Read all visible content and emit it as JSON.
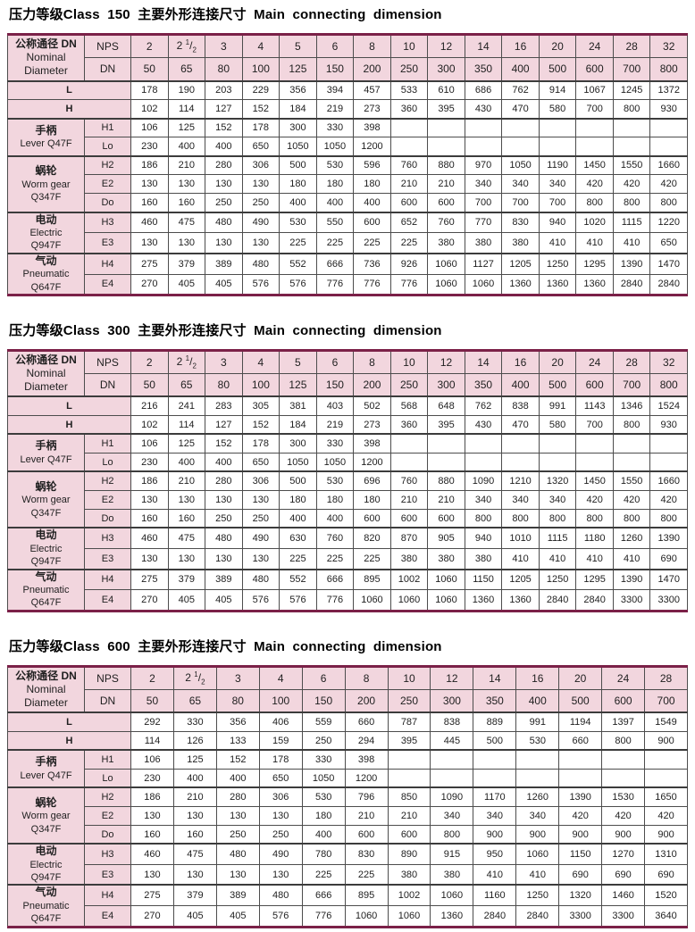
{
  "colors": {
    "header_pink": "#f2d6de",
    "rule_maroon": "#7b2148",
    "grid_line": "#4d4d4d",
    "text": "#1f1f1f"
  },
  "tables": [
    {
      "title": "压力等级Class 150 主要外形连接尺寸 Main connecting dimension",
      "corner_lines": [
        "公称通径 DN",
        "Nominal",
        "Diameter"
      ],
      "nps_label": "NPS",
      "dn_label": "DN",
      "nps": [
        "2",
        "2 1/2",
        "3",
        "4",
        "5",
        "6",
        "8",
        "10",
        "12",
        "14",
        "16",
        "20",
        "24",
        "28",
        "32"
      ],
      "dn": [
        "50",
        "65",
        "80",
        "100",
        "125",
        "150",
        "200",
        "250",
        "300",
        "350",
        "400",
        "500",
        "600",
        "700",
        "800"
      ],
      "rows": [
        {
          "label": "L",
          "span2": true,
          "values": [
            "178",
            "190",
            "203",
            "229",
            "356",
            "394",
            "457",
            "533",
            "610",
            "686",
            "762",
            "914",
            "1067",
            "1245",
            "1372"
          ]
        },
        {
          "label": "H",
          "span2": true,
          "values": [
            "102",
            "114",
            "127",
            "152",
            "184",
            "219",
            "273",
            "360",
            "395",
            "430",
            "470",
            "580",
            "700",
            "800",
            "930"
          ]
        },
        {
          "group": [
            "手柄",
            "Lever Q47F"
          ],
          "group_span": 2,
          "label": "H1",
          "values": [
            "106",
            "125",
            "152",
            "178",
            "300",
            "330",
            "398",
            "",
            "",
            "",
            "",
            "",
            "",
            "",
            ""
          ]
        },
        {
          "label": "Lo",
          "values": [
            "230",
            "400",
            "400",
            "650",
            "1050",
            "1050",
            "1200",
            "",
            "",
            "",
            "",
            "",
            "",
            "",
            ""
          ]
        },
        {
          "group": [
            "蜗轮",
            "Worm gear",
            "Q347F"
          ],
          "group_span": 3,
          "label": "H2",
          "values": [
            "186",
            "210",
            "280",
            "306",
            "500",
            "530",
            "596",
            "760",
            "880",
            "970",
            "1050",
            "1190",
            "1450",
            "1550",
            "1660"
          ]
        },
        {
          "label": "E2",
          "values": [
            "130",
            "130",
            "130",
            "130",
            "180",
            "180",
            "180",
            "210",
            "210",
            "340",
            "340",
            "340",
            "420",
            "420",
            "420"
          ]
        },
        {
          "label": "Do",
          "values": [
            "160",
            "160",
            "250",
            "250",
            "400",
            "400",
            "400",
            "600",
            "600",
            "700",
            "700",
            "700",
            "800",
            "800",
            "800"
          ]
        },
        {
          "group": [
            "电动",
            "Electric",
            "Q947F"
          ],
          "group_span": 2,
          "label": "H3",
          "values": [
            "460",
            "475",
            "480",
            "490",
            "530",
            "550",
            "600",
            "652",
            "760",
            "770",
            "830",
            "940",
            "1020",
            "1115",
            "1220"
          ]
        },
        {
          "label": "E3",
          "values": [
            "130",
            "130",
            "130",
            "130",
            "225",
            "225",
            "225",
            "225",
            "380",
            "380",
            "380",
            "410",
            "410",
            "410",
            "650"
          ]
        },
        {
          "group": [
            "气动",
            "Pneumatic",
            "Q647F"
          ],
          "group_span": 2,
          "label": "H4",
          "values": [
            "275",
            "379",
            "389",
            "480",
            "552",
            "666",
            "736",
            "926",
            "1060",
            "1127",
            "1205",
            "1250",
            "1295",
            "1390",
            "1470"
          ]
        },
        {
          "label": "E4",
          "values": [
            "270",
            "405",
            "405",
            "576",
            "576",
            "776",
            "776",
            "776",
            "1060",
            "1060",
            "1360",
            "1360",
            "1360",
            "2840",
            "2840"
          ]
        }
      ]
    },
    {
      "title": "压力等级Class 300 主要外形连接尺寸 Main connecting dimension",
      "corner_lines": [
        "公称通径 DN",
        "Nominal",
        "Diameter"
      ],
      "nps_label": "NPS",
      "dn_label": "DN",
      "nps": [
        "2",
        "2 1/2",
        "3",
        "4",
        "5",
        "6",
        "8",
        "10",
        "12",
        "14",
        "16",
        "20",
        "24",
        "28",
        "32"
      ],
      "dn": [
        "50",
        "65",
        "80",
        "100",
        "125",
        "150",
        "200",
        "250",
        "300",
        "350",
        "400",
        "500",
        "600",
        "700",
        "800"
      ],
      "rows": [
        {
          "label": "L",
          "span2": true,
          "values": [
            "216",
            "241",
            "283",
            "305",
            "381",
            "403",
            "502",
            "568",
            "648",
            "762",
            "838",
            "991",
            "1143",
            "1346",
            "1524"
          ]
        },
        {
          "label": "H",
          "span2": true,
          "values": [
            "102",
            "114",
            "127",
            "152",
            "184",
            "219",
            "273",
            "360",
            "395",
            "430",
            "470",
            "580",
            "700",
            "800",
            "930"
          ]
        },
        {
          "group": [
            "手柄",
            "Lever Q47F"
          ],
          "group_span": 2,
          "label": "H1",
          "values": [
            "106",
            "125",
            "152",
            "178",
            "300",
            "330",
            "398",
            "",
            "",
            "",
            "",
            "",
            "",
            "",
            ""
          ]
        },
        {
          "label": "Lo",
          "values": [
            "230",
            "400",
            "400",
            "650",
            "1050",
            "1050",
            "1200",
            "",
            "",
            "",
            "",
            "",
            "",
            "",
            ""
          ]
        },
        {
          "group": [
            "蜗轮",
            "Worm gear",
            "Q347F"
          ],
          "group_span": 3,
          "label": "H2",
          "values": [
            "186",
            "210",
            "280",
            "306",
            "500",
            "530",
            "696",
            "760",
            "880",
            "1090",
            "1210",
            "1320",
            "1450",
            "1550",
            "1660"
          ]
        },
        {
          "label": "E2",
          "values": [
            "130",
            "130",
            "130",
            "130",
            "180",
            "180",
            "180",
            "210",
            "210",
            "340",
            "340",
            "340",
            "420",
            "420",
            "420"
          ]
        },
        {
          "label": "Do",
          "values": [
            "160",
            "160",
            "250",
            "250",
            "400",
            "400",
            "600",
            "600",
            "600",
            "800",
            "800",
            "800",
            "800",
            "800",
            "800"
          ]
        },
        {
          "group": [
            "电动",
            "Electric",
            "Q947F"
          ],
          "group_span": 2,
          "label": "H3",
          "values": [
            "460",
            "475",
            "480",
            "490",
            "630",
            "760",
            "820",
            "870",
            "905",
            "940",
            "1010",
            "1115",
            "1180",
            "1260",
            "1390"
          ]
        },
        {
          "label": "E3",
          "values": [
            "130",
            "130",
            "130",
            "130",
            "225",
            "225",
            "225",
            "380",
            "380",
            "380",
            "410",
            "410",
            "410",
            "410",
            "690"
          ]
        },
        {
          "group": [
            "气动",
            "Pneumatic",
            "Q647F"
          ],
          "group_span": 2,
          "label": "H4",
          "values": [
            "275",
            "379",
            "389",
            "480",
            "552",
            "666",
            "895",
            "1002",
            "1060",
            "1150",
            "1205",
            "1250",
            "1295",
            "1390",
            "1470"
          ]
        },
        {
          "label": "E4",
          "values": [
            "270",
            "405",
            "405",
            "576",
            "576",
            "776",
            "1060",
            "1060",
            "1060",
            "1360",
            "1360",
            "2840",
            "2840",
            "3300",
            "3300"
          ]
        }
      ]
    },
    {
      "title": "压力等级Class 600 主要外形连接尺寸 Main connecting dimension",
      "corner_lines": [
        "公称通径 DN",
        "Nominal",
        "Diameter"
      ],
      "nps_label": "NPS",
      "dn_label": "DN",
      "nps": [
        "2",
        "2 1/2",
        "3",
        "4",
        "6",
        "8",
        "10",
        "12",
        "14",
        "16",
        "20",
        "24",
        "28"
      ],
      "dn": [
        "50",
        "65",
        "80",
        "100",
        "150",
        "200",
        "250",
        "300",
        "350",
        "400",
        "500",
        "600",
        "700"
      ],
      "rows": [
        {
          "label": "L",
          "span2": true,
          "values": [
            "292",
            "330",
            "356",
            "406",
            "559",
            "660",
            "787",
            "838",
            "889",
            "991",
            "1194",
            "1397",
            "1549"
          ]
        },
        {
          "label": "H",
          "span2": true,
          "values": [
            "114",
            "126",
            "133",
            "159",
            "250",
            "294",
            "395",
            "445",
            "500",
            "530",
            "660",
            "800",
            "900"
          ]
        },
        {
          "group": [
            "手柄",
            "Lever Q47F"
          ],
          "group_span": 2,
          "label": "H1",
          "values": [
            "106",
            "125",
            "152",
            "178",
            "330",
            "398",
            "",
            "",
            "",
            "",
            "",
            "",
            ""
          ]
        },
        {
          "label": "Lo",
          "values": [
            "230",
            "400",
            "400",
            "650",
            "1050",
            "1200",
            "",
            "",
            "",
            "",
            "",
            "",
            ""
          ]
        },
        {
          "group": [
            "蜗轮",
            "Worm gear",
            "Q347F"
          ],
          "group_span": 3,
          "label": "H2",
          "values": [
            "186",
            "210",
            "280",
            "306",
            "530",
            "796",
            "850",
            "1090",
            "1170",
            "1260",
            "1390",
            "1530",
            "1650"
          ]
        },
        {
          "label": "E2",
          "values": [
            "130",
            "130",
            "130",
            "130",
            "180",
            "210",
            "210",
            "340",
            "340",
            "340",
            "420",
            "420",
            "420"
          ]
        },
        {
          "label": "Do",
          "values": [
            "160",
            "160",
            "250",
            "250",
            "400",
            "600",
            "600",
            "800",
            "900",
            "900",
            "900",
            "900",
            "900"
          ]
        },
        {
          "group": [
            "电动",
            "Electric",
            "Q947F"
          ],
          "group_span": 2,
          "label": "H3",
          "values": [
            "460",
            "475",
            "480",
            "490",
            "780",
            "830",
            "890",
            "915",
            "950",
            "1060",
            "1150",
            "1270",
            "1310"
          ]
        },
        {
          "label": "E3",
          "values": [
            "130",
            "130",
            "130",
            "130",
            "225",
            "225",
            "380",
            "380",
            "410",
            "410",
            "690",
            "690",
            "690"
          ]
        },
        {
          "group": [
            "气动",
            "Pneumatic",
            "Q647F"
          ],
          "group_span": 2,
          "label": "H4",
          "values": [
            "275",
            "379",
            "389",
            "480",
            "666",
            "895",
            "1002",
            "1060",
            "1160",
            "1250",
            "1320",
            "1460",
            "1520"
          ]
        },
        {
          "label": "E4",
          "values": [
            "270",
            "405",
            "405",
            "576",
            "776",
            "1060",
            "1060",
            "1360",
            "2840",
            "2840",
            "3300",
            "3300",
            "3640"
          ]
        }
      ]
    }
  ]
}
